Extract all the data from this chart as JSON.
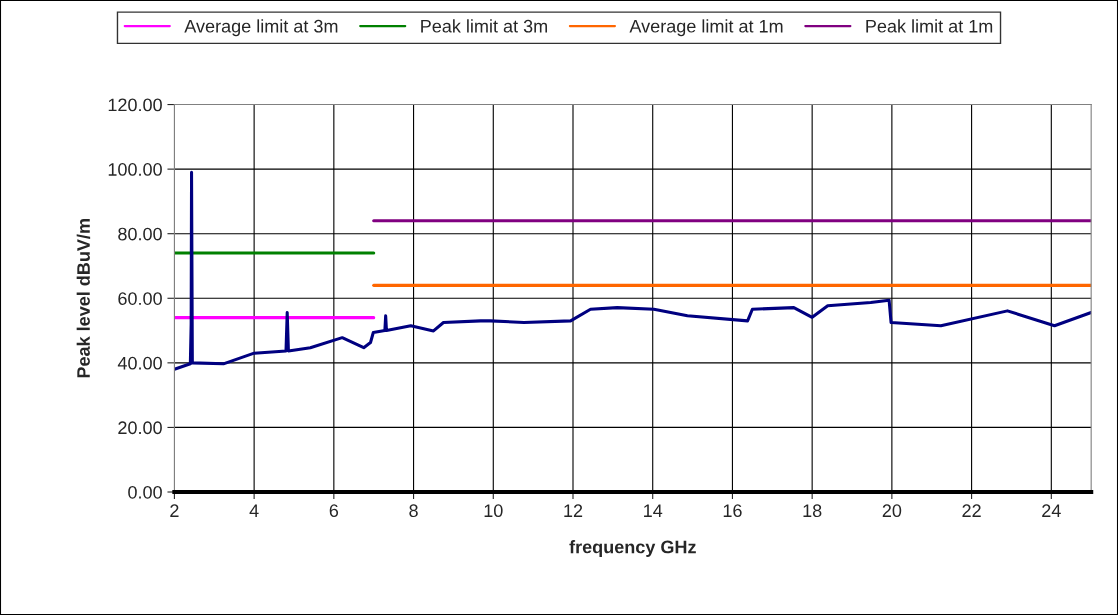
{
  "chart_data": {
    "type": "line",
    "xlabel": "frequency GHz",
    "ylabel": "Peak level dBuV/m",
    "xlim": [
      2,
      25
    ],
    "xticks": [
      2,
      4,
      6,
      8,
      10,
      12,
      14,
      16,
      18,
      20,
      22,
      24
    ],
    "ylim": [
      0,
      120
    ],
    "yticks": [
      {
        "value": 0,
        "label": "0.00"
      },
      {
        "value": 20,
        "label": "20.00"
      },
      {
        "value": 40,
        "label": "40.00"
      },
      {
        "value": 60,
        "label": "60.00"
      },
      {
        "value": 80,
        "label": "80.00"
      },
      {
        "value": 100,
        "label": "100.00"
      },
      {
        "value": 120,
        "label": "120.00"
      }
    ],
    "grid": true,
    "legend": "top",
    "marker": "none",
    "line_style": "solid",
    "series": [
      {
        "name": "Average limit at 3m",
        "color": "#ff00ff",
        "x": [
          2,
          7
        ],
        "values": [
          54,
          54
        ]
      },
      {
        "name": "Peak limit at 3m",
        "color": "#008000",
        "x": [
          2,
          7
        ],
        "values": [
          74,
          74
        ]
      },
      {
        "name": "Average limit at 1m",
        "color": "#ff6600",
        "x": [
          7,
          25
        ],
        "values": [
          64,
          64
        ]
      },
      {
        "name": "Peak limit at 1m",
        "color": "#800080",
        "x": [
          7,
          25
        ],
        "values": [
          84,
          84
        ]
      },
      {
        "color": "#000080",
        "x": [
          2.0,
          2.4,
          2.42,
          2.43,
          2.45,
          3.23,
          4.0,
          4.8,
          4.83,
          4.86,
          5.41,
          6.21,
          6.75,
          6.92,
          6.99,
          7.28,
          7.3,
          7.32,
          7.93,
          8.5,
          8.75,
          9.68,
          9.93,
          10.77,
          11.94,
          12.44,
          13.11,
          14.03,
          14.87,
          16.38,
          16.5,
          17.54,
          18.0,
          18.39,
          19.47,
          19.93,
          19.98,
          21.23,
          22.9,
          24.08,
          25.0
        ],
        "values": [
          38,
          39.7,
          52,
          99,
          40,
          39.7,
          43,
          43.7,
          55.6,
          43.7,
          44.7,
          47.8,
          44.7,
          46.3,
          49.4,
          50,
          54.6,
          50,
          51.5,
          49.9,
          52.5,
          53,
          53,
          52.5,
          53,
          56.6,
          57.1,
          56.6,
          54.6,
          53,
          56.6,
          57.1,
          54.1,
          57.7,
          58.7,
          59.4,
          52.5,
          51.5,
          56.1,
          51.5,
          55.6
        ]
      }
    ]
  }
}
